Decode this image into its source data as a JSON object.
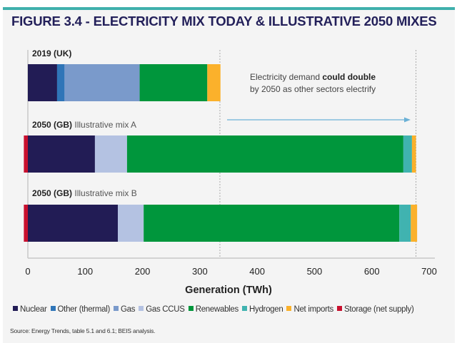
{
  "title": "FIGURE 3.4 - ELECTRICITY MIX TODAY & ILLUSTRATIVE 2050 MIXES",
  "annotation": {
    "pre": "Electricity demand ",
    "bold": "could double",
    "post": "by 2050 as other sectors electrify"
  },
  "source": "Source: Energy Trends, table 5.1 and 6.1; BEIS analysis.",
  "chart_data": {
    "type": "bar",
    "orientation": "horizontal",
    "stacked": true,
    "xlabel": "Generation (TWh)",
    "xlim": [
      0,
      700
    ],
    "xticks": [
      0,
      100,
      200,
      300,
      400,
      500,
      600,
      700
    ],
    "legend_position": "bottom",
    "categories": [
      {
        "bold": "2019 (UK)",
        "rest": ""
      },
      {
        "bold": "2050 (GB)",
        "rest": " Illustrative mix A"
      },
      {
        "bold": "2050 (GB)",
        "rest": " Illustrative mix B"
      }
    ],
    "series": [
      {
        "name": "Nuclear",
        "color": "#221c55",
        "values": [
          51,
          117,
          157
        ]
      },
      {
        "name": "Other (thermal)",
        "color": "#2f75b8",
        "values": [
          13,
          0,
          0
        ]
      },
      {
        "name": "Gas",
        "color": "#7a9acb",
        "values": [
          131,
          0,
          0
        ]
      },
      {
        "name": "Gas CCUS",
        "color": "#b4c2e2",
        "values": [
          0,
          56,
          45
        ]
      },
      {
        "name": "Renewables",
        "color": "#00963c",
        "values": [
          118,
          482,
          446
        ]
      },
      {
        "name": "Hydrogen",
        "color": "#40b3b0",
        "values": [
          0,
          15,
          20
        ]
      },
      {
        "name": "Net imports",
        "color": "#fbb12b",
        "values": [
          23,
          7,
          11
        ]
      },
      {
        "name": "Storage (net supply)",
        "color": "#c8102e",
        "values": [
          0,
          -7,
          -7
        ]
      }
    ],
    "reference_lines": [
      335,
      677
    ]
  }
}
